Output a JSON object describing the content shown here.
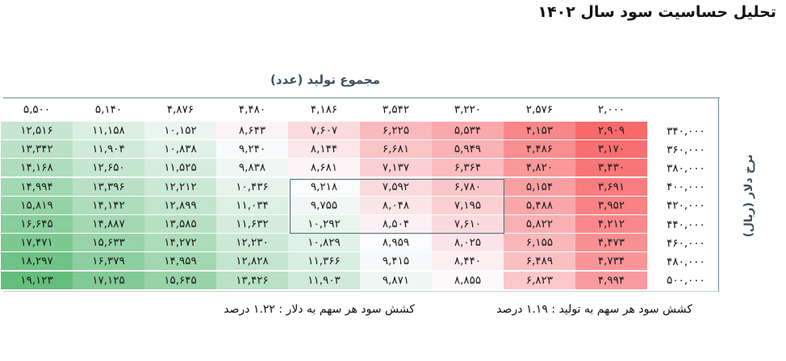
{
  "title": "تحلیل حساسیت سود سال ۱۴۰۲",
  "table": {
    "column_title": "مجموع تولید (عدد)",
    "row_title": "نرخ دلار (ریال)",
    "columns": [
      "۲,۰۰۰",
      "۲,۵۷۶",
      "۳,۲۲۰",
      "۳,۵۴۲",
      "۴,۱۸۶",
      "۴,۴۸۰",
      "۴,۸۷۶",
      "۵,۱۴۰",
      "۵,۵۰۰"
    ],
    "rows": [
      {
        "label": "۳۴۰,۰۰۰",
        "values": [
          "۲,۹۰۹",
          "۴,۱۵۳",
          "۵,۵۳۴",
          "۶,۲۲۵",
          "۷,۶۰۷",
          "۸,۶۴۳",
          "۱۰,۱۵۲",
          "۱۱,۱۵۸",
          "۱۲,۵۱۶"
        ]
      },
      {
        "label": "۳۶۰,۰۰۰",
        "values": [
          "۳,۱۷۰",
          "۴,۴۸۶",
          "۵,۹۴۹",
          "۶,۶۸۱",
          "۸,۱۴۴",
          "۹,۲۴۰",
          "۱۰,۸۳۸",
          "۱۱,۹۰۴",
          "۱۳,۳۴۲"
        ]
      },
      {
        "label": "۳۸۰,۰۰۰",
        "values": [
          "۳,۴۳۰",
          "۴,۸۲۰",
          "۶,۳۶۴",
          "۷,۱۳۷",
          "۸,۶۸۱",
          "۹,۸۳۸",
          "۱۱,۵۲۵",
          "۱۲,۶۵۰",
          "۱۴,۱۶۸"
        ]
      },
      {
        "label": "۴۰۰,۰۰۰",
        "values": [
          "۳,۶۹۱",
          "۵,۱۵۴",
          "۶,۷۸۰",
          "۷,۵۹۲",
          "۹,۲۱۸",
          "۱۰,۴۳۶",
          "۱۲,۲۱۲",
          "۱۳,۳۹۶",
          "۱۴,۹۹۴"
        ]
      },
      {
        "label": "۴۲۰,۰۰۰",
        "values": [
          "۳,۹۵۲",
          "۵,۴۸۸",
          "۷,۱۹۵",
          "۸,۰۴۸",
          "۹,۷۵۵",
          "۱۱,۰۳۴",
          "۱۲,۸۹۹",
          "۱۴,۱۴۲",
          "۱۵,۸۱۹"
        ]
      },
      {
        "label": "۴۴۰,۰۰۰",
        "values": [
          "۴,۲۱۲",
          "۵,۸۲۲",
          "۷,۶۱۰",
          "۸,۵۰۴",
          "۱۰,۲۹۲",
          "۱۱,۶۳۲",
          "۱۳,۵۸۵",
          "۱۴,۸۸۷",
          "۱۶,۶۴۵"
        ]
      },
      {
        "label": "۴۶۰,۰۰۰",
        "values": [
          "۴,۴۷۳",
          "۶,۱۵۵",
          "۸,۰۲۵",
          "۸,۹۵۹",
          "۱۰,۸۲۹",
          "۱۲,۲۳۰",
          "۱۴,۲۷۲",
          "۱۵,۶۳۳",
          "۱۷,۴۷۱"
        ]
      },
      {
        "label": "۴۸۰,۰۰۰",
        "values": [
          "۴,۷۳۴",
          "۶,۴۸۹",
          "۸,۴۴۰",
          "۹,۴۱۵",
          "۱۱,۳۶۶",
          "۱۲,۸۲۸",
          "۱۴,۹۵۹",
          "۱۶,۳۷۹",
          "۱۸,۲۹۷"
        ]
      },
      {
        "label": "۵۰۰,۰۰۰",
        "values": [
          "۴,۹۹۴",
          "۶,۸۲۳",
          "۸,۸۵۵",
          "۹,۸۷۱",
          "۱۱,۹۰۳",
          "۱۳,۴۲۶",
          "۱۵,۶۴۵",
          "۱۷,۱۲۵",
          "۱۹,۱۲۳"
        ]
      }
    ]
  },
  "notes": {
    "production_elasticity": "کشش سود هر سهم به تولید : ۱.۱۹ درصد",
    "dollar_elasticity": "کشش سود هر سهم به دلار : ۱.۲۲ درصد"
  },
  "colors": {
    "negative_end": "#f8696b",
    "midpoint": "#fcfcff",
    "positive_end": "#63be7b",
    "frame": "#6b8a96",
    "highlight_box": "#4d6b78"
  },
  "heatmap_scale": {
    "min": 2909,
    "mid": 9000,
    "max": 19123
  }
}
